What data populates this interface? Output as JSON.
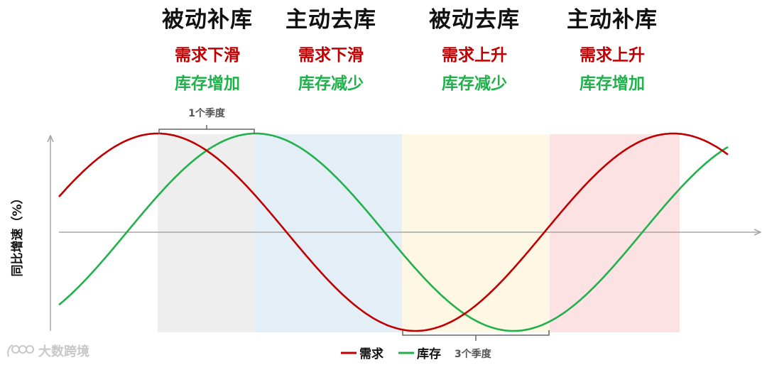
{
  "phases": [
    {
      "title": "被动补库",
      "demand": "需求下滑",
      "inventory": "库存增加"
    },
    {
      "title": "主动去库",
      "demand": "需求下滑",
      "inventory": "库存减少"
    },
    {
      "title": "被动去库",
      "demand": "需求上升",
      "inventory": "库存减少"
    },
    {
      "title": "主动补库",
      "demand": "需求上升",
      "inventory": "库存增加"
    }
  ],
  "annotations": {
    "lag_top": "1个季度",
    "lag_bottom": "3个季度"
  },
  "axis": {
    "y_label": "同比增速（%）"
  },
  "legend": {
    "demand": "需求",
    "inventory": "库存"
  },
  "watermark": "大数跨境",
  "colors": {
    "demand": "#c00000",
    "inventory": "#21b14c",
    "band_passive_restock": "#eeeeee",
    "band_active_destock": "#e4eef7",
    "band_passive_destock": "#fdf7e3",
    "band_active_restock": "#fde2e4",
    "axis": "#a6a6a6",
    "bracket": "#666666"
  }
}
